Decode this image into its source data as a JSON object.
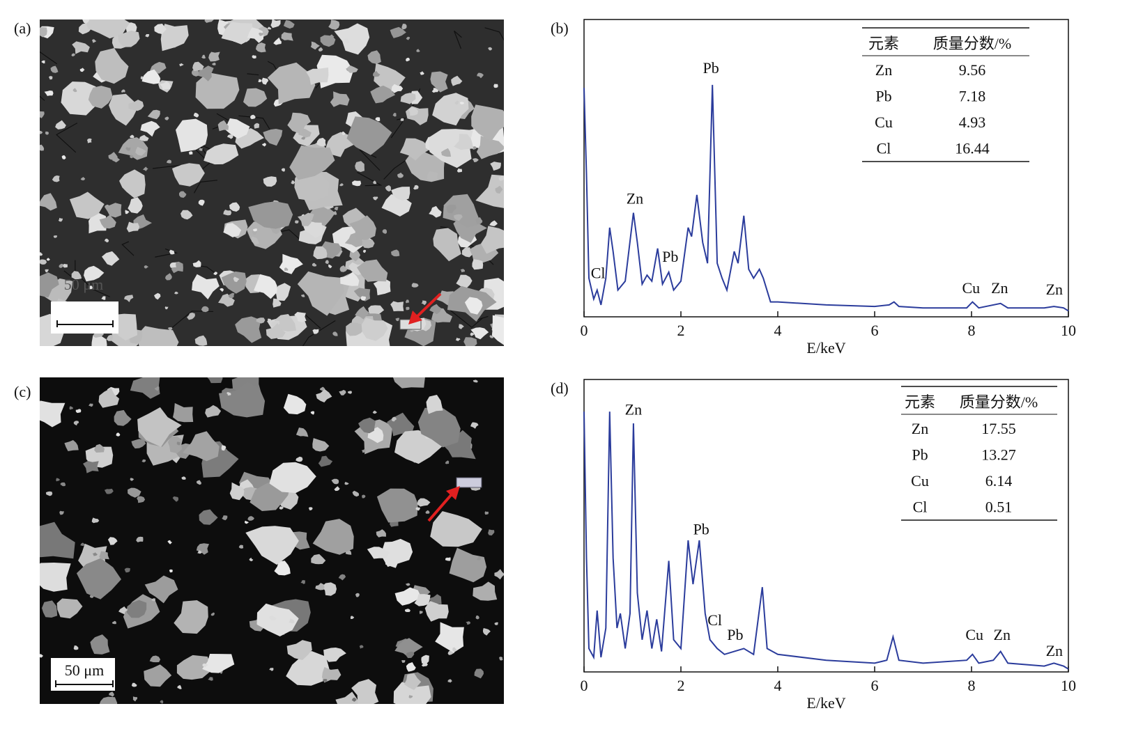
{
  "figure": {
    "images": [
      {
        "label": "(a)",
        "scale_bar": "50 μm"
      },
      {
        "label": "(c)",
        "scale_bar": "50 μm"
      }
    ]
  },
  "chart_data": [
    {
      "type": "line",
      "label": "(b)",
      "xlabel": "E/keV",
      "color": "#2b3c9c",
      "x": [
        0,
        0.05,
        0.1,
        0.2,
        0.27,
        0.35,
        0.45,
        0.53,
        0.6,
        0.7,
        0.85,
        1.02,
        1.1,
        1.2,
        1.3,
        1.4,
        1.52,
        1.62,
        1.75,
        1.85,
        2.0,
        2.15,
        2.22,
        2.33,
        2.45,
        2.55,
        2.65,
        2.75,
        2.85,
        2.95,
        3.1,
        3.18,
        3.3,
        3.4,
        3.5,
        3.62,
        3.7,
        3.85,
        4.0,
        5.0,
        6.0,
        6.3,
        6.4,
        6.5,
        7.0,
        7.9,
        8.02,
        8.15,
        8.6,
        8.75,
        9.5,
        9.7,
        9.9,
        10
      ],
      "values": [
        77,
        48,
        13,
        6,
        9,
        4,
        13,
        30,
        22,
        9,
        12,
        35,
        25,
        11,
        14,
        12,
        23,
        11,
        15,
        9,
        12,
        30,
        27,
        41,
        25,
        18,
        78,
        18,
        13,
        9,
        22,
        18,
        34,
        16,
        13,
        16,
        13,
        5,
        5,
        4,
        3.5,
        4,
        5,
        3.5,
        3,
        3,
        5,
        3,
        4.5,
        3,
        3,
        3.5,
        3,
        2
      ],
      "xlim": [
        0,
        10
      ],
      "ylim": [
        0,
        100
      ],
      "xticks": [
        0,
        2,
        4,
        6,
        8,
        10
      ],
      "annotations": [
        {
          "text": "Pb",
          "x": 2.62,
          "y": 82
        },
        {
          "text": "Zn",
          "x": 1.05,
          "y": 38
        },
        {
          "text": "Cl",
          "x": 0.29,
          "y": 13
        },
        {
          "text": "Pb",
          "x": 1.78,
          "y": 18.5
        },
        {
          "text": "Cu",
          "x": 7.99,
          "y": 8
        },
        {
          "text": "Zn",
          "x": 8.58,
          "y": 8
        },
        {
          "text": "Zn",
          "x": 9.71,
          "y": 7.5
        }
      ],
      "table": {
        "header": [
          "元素",
          "质量分数/%"
        ],
        "rows": [
          [
            "Zn",
            9.56
          ],
          [
            "Pb",
            7.18
          ],
          [
            "Cu",
            4.93
          ],
          [
            "Cl",
            16.44
          ]
        ]
      }
    },
    {
      "type": "line",
      "label": "(d)",
      "xlabel": "E/keV",
      "color": "#2b3c9c",
      "x": [
        0,
        0.05,
        0.1,
        0.2,
        0.27,
        0.35,
        0.45,
        0.53,
        0.6,
        0.68,
        0.75,
        0.85,
        0.95,
        1.02,
        1.1,
        1.2,
        1.3,
        1.4,
        1.5,
        1.6,
        1.75,
        1.85,
        2.0,
        2.15,
        2.25,
        2.38,
        2.5,
        2.6,
        2.75,
        2.9,
        3.1,
        3.3,
        3.5,
        3.68,
        3.78,
        4.0,
        5.0,
        6.0,
        6.25,
        6.38,
        6.5,
        7.0,
        7.9,
        8.02,
        8.15,
        8.45,
        8.6,
        8.75,
        9.5,
        9.7,
        9.9,
        10
      ],
      "values": [
        89,
        39,
        8,
        5,
        21,
        5,
        15,
        89,
        39,
        15,
        20,
        8,
        20,
        85,
        27,
        11,
        21,
        8,
        18,
        7,
        38,
        11,
        8,
        45,
        30,
        45,
        20,
        11,
        8,
        6,
        7,
        8,
        6,
        29,
        8,
        6,
        4,
        3,
        4,
        12,
        4,
        3,
        4,
        6,
        3,
        4,
        7,
        3,
        2,
        3,
        2,
        1
      ],
      "xlim": [
        0,
        10
      ],
      "ylim": [
        0,
        100
      ],
      "xticks": [
        0,
        2,
        4,
        6,
        8,
        10
      ],
      "annotations": [
        {
          "text": "Zn",
          "x": 1.02,
          "y": 88
        },
        {
          "text": "Pb",
          "x": 2.42,
          "y": 47
        },
        {
          "text": "Cl",
          "x": 2.7,
          "y": 16
        },
        {
          "text": "Pb",
          "x": 3.12,
          "y": 11
        },
        {
          "text": "Cu",
          "x": 8.06,
          "y": 11
        },
        {
          "text": "Zn",
          "x": 8.63,
          "y": 11
        },
        {
          "text": "Zn",
          "x": 9.71,
          "y": 5.5
        }
      ],
      "table": {
        "header": [
          "元素",
          "质量分数/%"
        ],
        "rows": [
          [
            "Zn",
            17.55
          ],
          [
            "Pb",
            13.27
          ],
          [
            "Cu",
            6.14
          ],
          [
            "Cl",
            0.51
          ]
        ]
      }
    }
  ]
}
